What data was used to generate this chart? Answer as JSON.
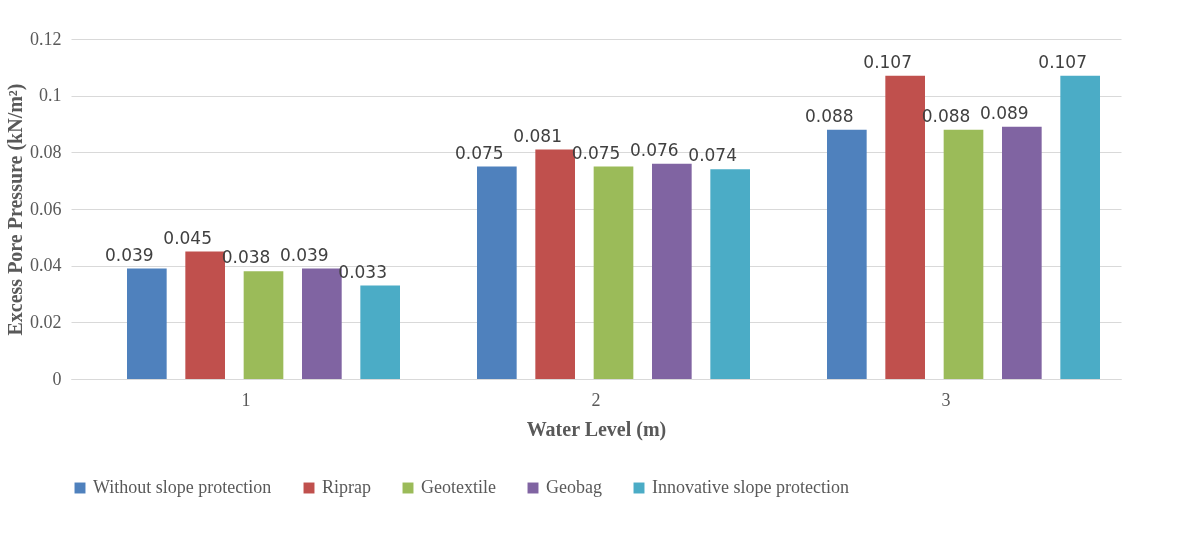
{
  "chart_data": {
    "type": "bar",
    "xlabel": "Water Level (m)",
    "ylabel": "Excess Pore Pressure (kN/m²)",
    "categories": [
      "1",
      "2",
      "3"
    ],
    "series": [
      {
        "name": "Without slope protection",
        "color": "#4f81bd",
        "values": [
          0.039,
          0.075,
          0.088
        ]
      },
      {
        "name": "Riprap",
        "color": "#c0504d",
        "values": [
          0.045,
          0.081,
          0.107
        ]
      },
      {
        "name": "Geotextile",
        "color": "#9bbb59",
        "values": [
          0.038,
          0.075,
          0.088
        ]
      },
      {
        "name": "Geobag",
        "color": "#8064a2",
        "values": [
          0.039,
          0.076,
          0.089
        ]
      },
      {
        "name": "Innovative slope protection",
        "color": "#4bacc6",
        "values": [
          0.033,
          0.074,
          0.107
        ]
      }
    ],
    "ylim": [
      0,
      0.12
    ],
    "yticks": [
      0,
      0.02,
      0.04,
      0.06,
      0.08,
      0.1,
      0.12
    ],
    "grid": "y",
    "legend": "bottom",
    "data_labels": true
  }
}
